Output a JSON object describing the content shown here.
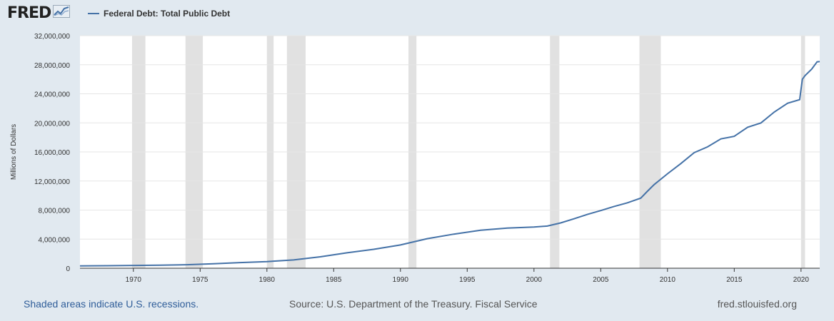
{
  "header": {
    "logo_text": "FRED",
    "logo_icon": "chart-trend-icon",
    "legend_label": "Federal Debt: Total Public Debt",
    "series_color": "#4572a7"
  },
  "footer": {
    "recession_note": "Shaded areas indicate U.S. recessions.",
    "source": "Source: U.S. Department of the Treasury. Fiscal Service",
    "site": "fred.stlouisfed.org"
  },
  "chart_data": {
    "type": "line",
    "title": "",
    "xlabel": "",
    "ylabel": "Millions of Dollars",
    "xlim": [
      1966.0,
      2021.4
    ],
    "ylim": [
      0,
      32000000
    ],
    "x_ticks": [
      1970,
      1975,
      1980,
      1985,
      1990,
      1995,
      2000,
      2005,
      2010,
      2015,
      2020
    ],
    "y_ticks": [
      0,
      4000000,
      8000000,
      12000000,
      16000000,
      20000000,
      24000000,
      28000000,
      32000000
    ],
    "y_tick_labels": [
      "0",
      "4,000,000",
      "8,000,000",
      "12,000,000",
      "16,000,000",
      "20,000,000",
      "24,000,000",
      "28,000,000",
      "32,000,000"
    ],
    "grid": true,
    "legend_position": "top-left",
    "recessions": [
      [
        1969.9,
        1970.9
      ],
      [
        1973.9,
        1975.2
      ],
      [
        1980.0,
        1980.5
      ],
      [
        1981.5,
        1982.9
      ],
      [
        1990.6,
        1991.2
      ],
      [
        2001.2,
        2001.9
      ],
      [
        2007.9,
        2009.5
      ],
      [
        2020.0,
        2020.3
      ]
    ],
    "series": [
      {
        "x": [
          1966.0,
          1968,
          1970,
          1972,
          1974,
          1976,
          1978,
          1980,
          1982,
          1984,
          1986,
          1988,
          1990,
          1992,
          1994,
          1996,
          1998,
          2000,
          2001,
          2002,
          2003,
          2004,
          2005,
          2006,
          2007,
          2008,
          2008.5,
          2009,
          2010,
          2011,
          2012,
          2013,
          2014,
          2015,
          2016,
          2017,
          2018,
          2019,
          2019.9,
          2020.1,
          2020.3,
          2020.8,
          2021.2,
          2021.4
        ],
        "values": [
          320000,
          348000,
          380000,
          425000,
          480000,
          620000,
          780000,
          910000,
          1140000,
          1570000,
          2120000,
          2600000,
          3200000,
          4060000,
          4690000,
          5220000,
          5530000,
          5670000,
          5800000,
          6230000,
          6800000,
          7400000,
          7930000,
          8500000,
          9000000,
          9650000,
          10600000,
          11500000,
          13000000,
          14400000,
          15900000,
          16700000,
          17800000,
          18150000,
          19400000,
          20000000,
          21500000,
          22700000,
          23200000,
          26000000,
          26500000,
          27400000,
          28400000,
          28450000
        ]
      }
    ]
  }
}
